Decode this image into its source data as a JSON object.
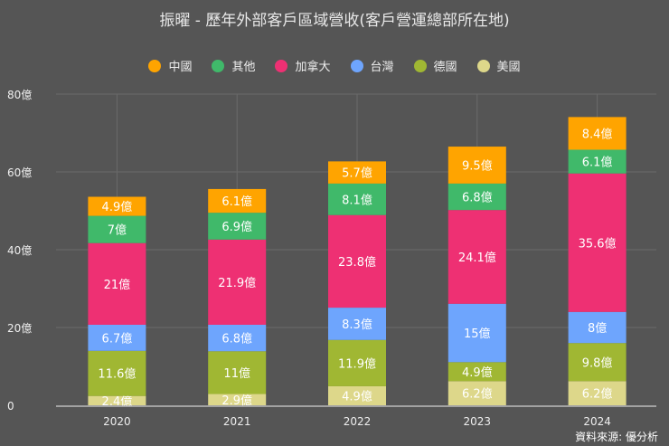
{
  "chart_data": {
    "type": "bar",
    "stacked": true,
    "title": "振曜 - 歷年外部客戶區域營收(客戶營運總部所在地)",
    "categories": [
      "2020",
      "2021",
      "2022",
      "2023",
      "2024"
    ],
    "ylim": [
      0,
      80
    ],
    "yticks": [
      "0",
      "20億",
      "40億",
      "60億",
      "80億"
    ],
    "ytick_values": [
      0,
      20,
      40,
      60,
      80
    ],
    "grid": true,
    "legend": "top",
    "unit": "億",
    "series": [
      {
        "name": "美國",
        "color": "#DDD78A",
        "values": [
          2.4,
          2.9,
          4.9,
          6.2,
          6.2
        ]
      },
      {
        "name": "德國",
        "color": "#A0B733",
        "values": [
          11.6,
          11,
          11.9,
          4.9,
          9.8
        ]
      },
      {
        "name": "台灣",
        "color": "#6EA5FD",
        "values": [
          6.7,
          6.8,
          8.3,
          15,
          8
        ]
      },
      {
        "name": "加拿大",
        "color": "#EE3073",
        "values": [
          21,
          21.9,
          23.8,
          24.1,
          35.6
        ]
      },
      {
        "name": "其他",
        "color": "#40B96A",
        "values": [
          7,
          6.9,
          8.1,
          6.8,
          6.1
        ]
      },
      {
        "name": "中國",
        "color": "#FFA400",
        "values": [
          4.9,
          6.1,
          5.7,
          9.5,
          8.4
        ]
      }
    ],
    "legend_order": [
      "中國",
      "其他",
      "加拿大",
      "台灣",
      "德國",
      "美國"
    ]
  },
  "source": "資料來源: 優分析"
}
